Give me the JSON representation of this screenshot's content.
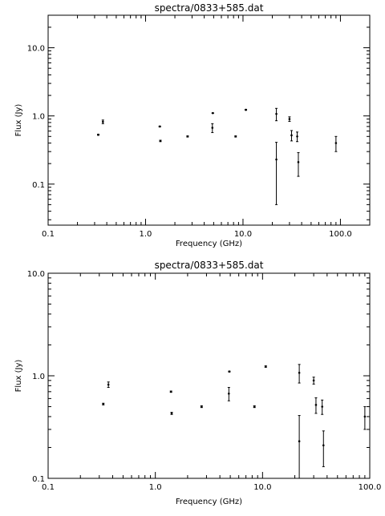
{
  "chart_data": [
    {
      "type": "scatter",
      "title": "spectra/0833+585.dat",
      "xlabel": "Frequency (GHz)",
      "ylabel": "Flux (Jy)",
      "xscale": "log",
      "yscale": "log",
      "xlim": [
        0.1,
        200
      ],
      "ylim": [
        0.025,
        30
      ],
      "xticks": [
        "0.1",
        "1.0",
        "10.0",
        "100.0"
      ],
      "yticks": [
        "0.1",
        "1.0",
        "10.0"
      ],
      "grid": false,
      "points": [
        {
          "x": 0.327,
          "y": 0.53,
          "err": 0.01
        },
        {
          "x": 0.365,
          "y": 0.82,
          "err": 0.05
        },
        {
          "x": 1.4,
          "y": 0.7,
          "err": 0.01
        },
        {
          "x": 1.42,
          "y": 0.43,
          "err": 0.01
        },
        {
          "x": 2.7,
          "y": 0.5,
          "err": 0.01
        },
        {
          "x": 4.85,
          "y": 0.67,
          "err": 0.1
        },
        {
          "x": 4.9,
          "y": 1.1,
          "err": 0.01
        },
        {
          "x": 8.4,
          "y": 0.5,
          "err": 0.01
        },
        {
          "x": 10.7,
          "y": 1.23,
          "err": 0.02
        },
        {
          "x": 22.0,
          "y": 1.07,
          "err": 0.22
        },
        {
          "x": 22.0,
          "y": 0.23,
          "err": 0.18
        },
        {
          "x": 30.0,
          "y": 0.9,
          "err": 0.07
        },
        {
          "x": 31.5,
          "y": 0.52,
          "err": 0.09
        },
        {
          "x": 36.0,
          "y": 0.5,
          "err": 0.08
        },
        {
          "x": 37.0,
          "y": 0.21,
          "err": 0.08
        },
        {
          "x": 90.0,
          "y": 0.4,
          "err": 0.1
        }
      ]
    },
    {
      "type": "scatter",
      "title": "spectra/0833+585.dat",
      "xlabel": "Frequency (GHz)",
      "ylabel": "Flux (Jy)",
      "xscale": "log",
      "yscale": "log",
      "xlim": [
        0.1,
        100
      ],
      "ylim": [
        0.1,
        10
      ],
      "xticks": [
        "0.1",
        "1.0",
        "10.0",
        "100.0"
      ],
      "yticks": [
        "0.1",
        "1.0",
        "10.0"
      ],
      "grid": false,
      "points": [
        {
          "x": 0.327,
          "y": 0.53,
          "err": 0.01
        },
        {
          "x": 0.365,
          "y": 0.82,
          "err": 0.05
        },
        {
          "x": 1.4,
          "y": 0.7,
          "err": 0.01
        },
        {
          "x": 1.42,
          "y": 0.43,
          "err": 0.01
        },
        {
          "x": 2.7,
          "y": 0.5,
          "err": 0.01
        },
        {
          "x": 4.85,
          "y": 0.67,
          "err": 0.1
        },
        {
          "x": 4.9,
          "y": 1.1,
          "err": 0.01
        },
        {
          "x": 8.4,
          "y": 0.5,
          "err": 0.01
        },
        {
          "x": 10.7,
          "y": 1.23,
          "err": 0.02
        },
        {
          "x": 22.0,
          "y": 1.07,
          "err": 0.22
        },
        {
          "x": 22.0,
          "y": 0.23,
          "err": 0.18
        },
        {
          "x": 30.0,
          "y": 0.9,
          "err": 0.07
        },
        {
          "x": 31.5,
          "y": 0.52,
          "err": 0.09
        },
        {
          "x": 36.0,
          "y": 0.5,
          "err": 0.08
        },
        {
          "x": 37.0,
          "y": 0.21,
          "err": 0.08
        },
        {
          "x": 90.0,
          "y": 0.4,
          "err": 0.1
        }
      ]
    }
  ]
}
